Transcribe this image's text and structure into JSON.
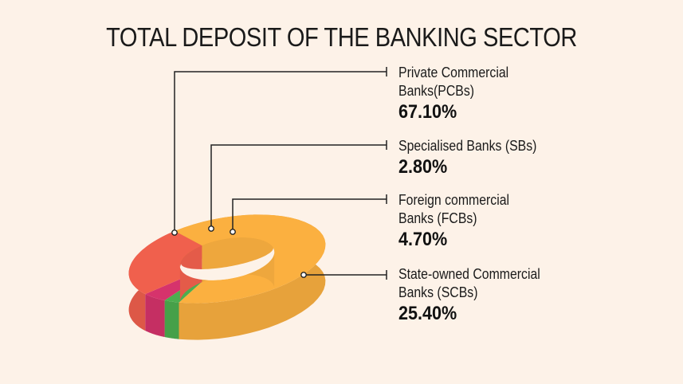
{
  "chart_data": {
    "type": "pie",
    "title": "TOTAL DEPOSIT OF THE BANKING SECTOR",
    "slices": [
      {
        "label_lines": [
          "Private Commercial",
          "Banks(PCBs)"
        ],
        "value": 67.1,
        "display": "67.10%",
        "color": "#fbb040"
      },
      {
        "label_lines": [
          "Specialised Banks (SBs)"
        ],
        "value": 2.8,
        "display": "2.80%",
        "color": "#4cae4f"
      },
      {
        "label_lines": [
          "Foreign commercial",
          "Banks (FCBs)"
        ],
        "value": 4.7,
        "display": "4.70%",
        "color": "#d6336c"
      },
      {
        "label_lines": [
          "State-owned Commercial",
          "Banks (SCBs)"
        ],
        "value": 25.4,
        "display": "25.40%",
        "color": "#f0604d"
      }
    ]
  }
}
